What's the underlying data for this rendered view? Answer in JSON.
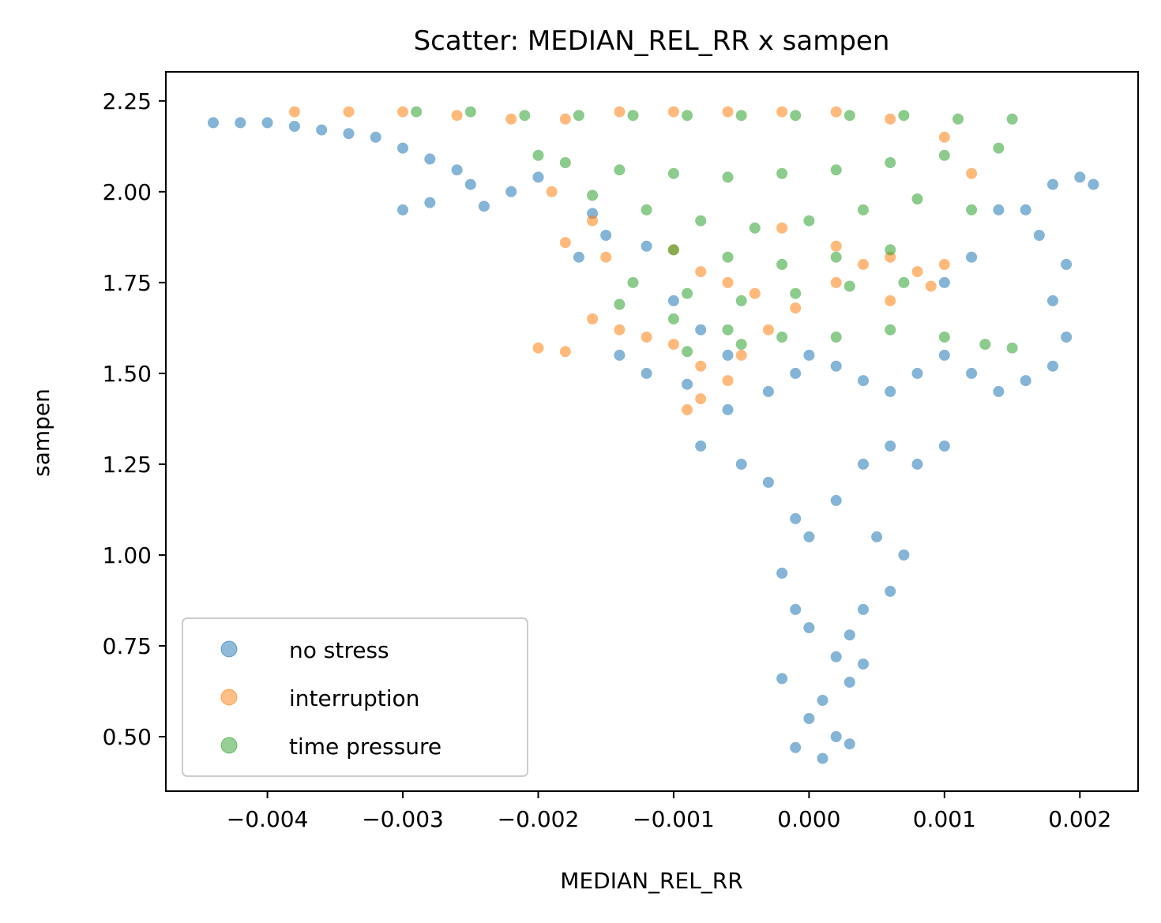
{
  "chart_data": {
    "type": "scatter",
    "title": "Scatter: MEDIAN_REL_RR x sampen",
    "xlabel": "MEDIAN_REL_RR",
    "ylabel": "sampen",
    "xlim": [
      -0.00475,
      0.00243
    ],
    "ylim": [
      0.35,
      2.33
    ],
    "x_ticks": [
      -0.004,
      -0.003,
      -0.002,
      -0.001,
      0.0,
      0.001,
      0.002
    ],
    "x_tick_labels": [
      "−0.004",
      "−0.003",
      "−0.002",
      "−0.001",
      "0.000",
      "0.001",
      "0.002"
    ],
    "y_ticks": [
      0.5,
      0.75,
      1.0,
      1.25,
      1.5,
      1.75,
      2.0,
      2.25
    ],
    "y_tick_labels": [
      "0.50",
      "0.75",
      "1.00",
      "1.25",
      "1.50",
      "1.75",
      "2.00",
      "2.25"
    ],
    "grid": false,
    "legend_position": "lower-left",
    "series": [
      {
        "name": "no stress",
        "color": "#1f77b4",
        "points": [
          [
            -0.0044,
            2.19
          ],
          [
            -0.0042,
            2.19
          ],
          [
            -0.004,
            2.19
          ],
          [
            -0.0038,
            2.18
          ],
          [
            -0.0036,
            2.17
          ],
          [
            -0.0034,
            2.16
          ],
          [
            -0.0032,
            2.15
          ],
          [
            -0.003,
            2.12
          ],
          [
            -0.0028,
            2.09
          ],
          [
            -0.0026,
            2.06
          ],
          [
            -0.0025,
            2.02
          ],
          [
            -0.0028,
            1.97
          ],
          [
            -0.003,
            1.95
          ],
          [
            -0.0024,
            1.96
          ],
          [
            -0.0022,
            2.0
          ],
          [
            -0.002,
            2.04
          ],
          [
            -0.0016,
            1.94
          ],
          [
            -0.0015,
            1.88
          ],
          [
            -0.0017,
            1.82
          ],
          [
            -0.0012,
            1.85
          ],
          [
            -0.001,
            1.7
          ],
          [
            -0.0008,
            1.62
          ],
          [
            -0.0006,
            1.55
          ],
          [
            -0.0014,
            1.55
          ],
          [
            -0.0012,
            1.5
          ],
          [
            -0.0009,
            1.47
          ],
          [
            -0.0006,
            1.4
          ],
          [
            -0.0003,
            1.45
          ],
          [
            -0.0001,
            1.5
          ],
          [
            0.0,
            1.55
          ],
          [
            0.0002,
            1.52
          ],
          [
            0.0004,
            1.48
          ],
          [
            0.0006,
            1.45
          ],
          [
            0.0008,
            1.5
          ],
          [
            0.001,
            1.55
          ],
          [
            0.0012,
            1.5
          ],
          [
            0.0014,
            1.45
          ],
          [
            0.0016,
            1.48
          ],
          [
            0.0018,
            1.52
          ],
          [
            0.0019,
            1.6
          ],
          [
            0.0018,
            1.7
          ],
          [
            0.0019,
            1.8
          ],
          [
            0.0017,
            1.88
          ],
          [
            0.0016,
            1.95
          ],
          [
            0.0018,
            2.02
          ],
          [
            0.002,
            2.04
          ],
          [
            0.0021,
            2.02
          ],
          [
            0.0014,
            1.95
          ],
          [
            0.0012,
            1.82
          ],
          [
            0.001,
            1.75
          ],
          [
            -0.0008,
            1.3
          ],
          [
            -0.0005,
            1.25
          ],
          [
            -0.0003,
            1.2
          ],
          [
            -0.0001,
            1.1
          ],
          [
            0.0,
            1.05
          ],
          [
            0.0002,
            1.15
          ],
          [
            0.0004,
            1.25
          ],
          [
            0.0006,
            1.3
          ],
          [
            0.0008,
            1.25
          ],
          [
            0.001,
            1.3
          ],
          [
            0.0005,
            1.05
          ],
          [
            0.0007,
            1.0
          ],
          [
            0.0006,
            0.9
          ],
          [
            0.0004,
            0.85
          ],
          [
            0.0003,
            0.78
          ],
          [
            -0.0002,
            0.95
          ],
          [
            -0.0001,
            0.85
          ],
          [
            0.0,
            0.8
          ],
          [
            0.0002,
            0.72
          ],
          [
            0.0003,
            0.65
          ],
          [
            0.0001,
            0.6
          ],
          [
            0.0,
            0.55
          ],
          [
            0.0002,
            0.5
          ],
          [
            -0.0001,
            0.47
          ],
          [
            0.0001,
            0.44
          ],
          [
            0.0003,
            0.48
          ],
          [
            -0.0002,
            0.66
          ],
          [
            0.0004,
            0.7
          ]
        ]
      },
      {
        "name": "interruption",
        "color": "#ff7f0e",
        "points": [
          [
            -0.0038,
            2.22
          ],
          [
            -0.0034,
            2.22
          ],
          [
            -0.003,
            2.22
          ],
          [
            -0.0026,
            2.21
          ],
          [
            -0.0022,
            2.2
          ],
          [
            -0.0018,
            2.2
          ],
          [
            -0.0014,
            2.22
          ],
          [
            -0.001,
            2.22
          ],
          [
            -0.0006,
            2.22
          ],
          [
            -0.0002,
            2.22
          ],
          [
            0.0002,
            2.22
          ],
          [
            0.0006,
            2.2
          ],
          [
            0.001,
            2.15
          ],
          [
            0.0012,
            2.05
          ],
          [
            -0.0019,
            2.0
          ],
          [
            -0.0016,
            1.92
          ],
          [
            -0.0018,
            1.86
          ],
          [
            -0.0015,
            1.82
          ],
          [
            -0.001,
            1.84
          ],
          [
            -0.0008,
            1.78
          ],
          [
            -0.0006,
            1.75
          ],
          [
            -0.0004,
            1.72
          ],
          [
            -0.0016,
            1.65
          ],
          [
            -0.0014,
            1.62
          ],
          [
            -0.0012,
            1.6
          ],
          [
            -0.002,
            1.57
          ],
          [
            -0.0018,
            1.56
          ],
          [
            -0.001,
            1.58
          ],
          [
            -0.0008,
            1.52
          ],
          [
            -0.0006,
            1.48
          ],
          [
            -0.0008,
            1.43
          ],
          [
            -0.0009,
            1.4
          ],
          [
            -0.0005,
            1.55
          ],
          [
            -0.0003,
            1.62
          ],
          [
            -0.0001,
            1.68
          ],
          [
            0.0002,
            1.75
          ],
          [
            0.0004,
            1.8
          ],
          [
            0.0006,
            1.82
          ],
          [
            0.0008,
            1.78
          ],
          [
            0.0009,
            1.74
          ],
          [
            0.001,
            1.8
          ],
          [
            0.0006,
            1.7
          ],
          [
            0.0002,
            1.85
          ],
          [
            -0.0002,
            1.9
          ]
        ]
      },
      {
        "name": "time pressure",
        "color": "#2ca02c",
        "points": [
          [
            -0.0029,
            2.22
          ],
          [
            -0.0025,
            2.22
          ],
          [
            -0.0021,
            2.21
          ],
          [
            -0.0017,
            2.21
          ],
          [
            -0.0013,
            2.21
          ],
          [
            -0.0009,
            2.21
          ],
          [
            -0.0005,
            2.21
          ],
          [
            -0.0001,
            2.21
          ],
          [
            0.0003,
            2.21
          ],
          [
            0.0007,
            2.21
          ],
          [
            0.0011,
            2.2
          ],
          [
            0.0015,
            2.2
          ],
          [
            0.0014,
            2.12
          ],
          [
            0.001,
            2.1
          ],
          [
            0.0006,
            2.08
          ],
          [
            0.0002,
            2.06
          ],
          [
            -0.0002,
            2.05
          ],
          [
            -0.0006,
            2.04
          ],
          [
            -0.001,
            2.05
          ],
          [
            -0.0014,
            2.06
          ],
          [
            -0.0018,
            2.08
          ],
          [
            -0.002,
            2.1
          ],
          [
            -0.0016,
            1.99
          ],
          [
            -0.0012,
            1.95
          ],
          [
            -0.0008,
            1.92
          ],
          [
            -0.0004,
            1.9
          ],
          [
            0.0,
            1.92
          ],
          [
            0.0004,
            1.95
          ],
          [
            0.0008,
            1.98
          ],
          [
            0.0012,
            1.95
          ],
          [
            -0.001,
            1.84
          ],
          [
            -0.0006,
            1.82
          ],
          [
            -0.0002,
            1.8
          ],
          [
            0.0002,
            1.82
          ],
          [
            0.0006,
            1.84
          ],
          [
            -0.0013,
            1.75
          ],
          [
            -0.0009,
            1.72
          ],
          [
            -0.0005,
            1.7
          ],
          [
            -0.0001,
            1.72
          ],
          [
            0.0003,
            1.74
          ],
          [
            0.0007,
            1.75
          ],
          [
            -0.0014,
            1.69
          ],
          [
            -0.001,
            1.65
          ],
          [
            -0.0006,
            1.62
          ],
          [
            -0.0002,
            1.6
          ],
          [
            0.0002,
            1.6
          ],
          [
            0.0006,
            1.62
          ],
          [
            0.001,
            1.6
          ],
          [
            0.0013,
            1.58
          ],
          [
            0.0015,
            1.57
          ],
          [
            -0.0009,
            1.56
          ],
          [
            -0.0005,
            1.58
          ]
        ]
      }
    ]
  }
}
